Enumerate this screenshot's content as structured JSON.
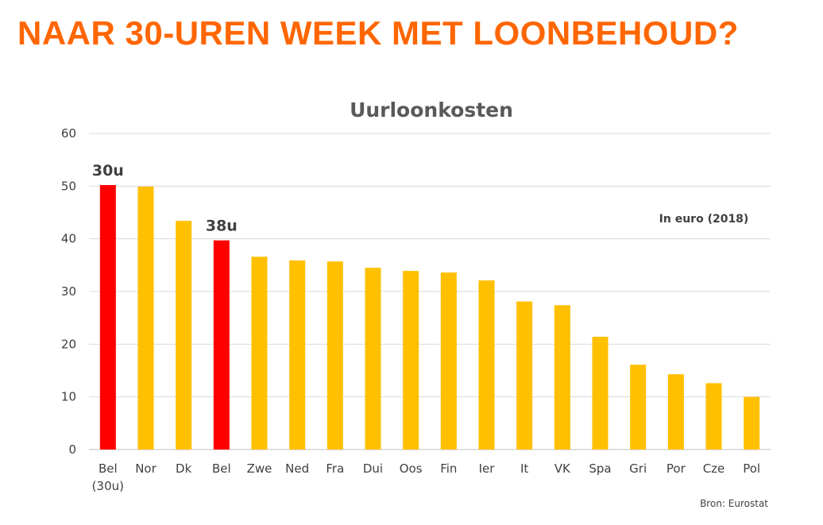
{
  "slide": {
    "title": "NAAR 30-UREN WEEK MET LOONBEHOUD?",
    "title_color": "#ff6600"
  },
  "chart_data": {
    "type": "bar",
    "title": "Uurloonkosten",
    "note": "In euro (2018)",
    "source": "Bron: Eurostat",
    "xlabel": "",
    "ylabel": "",
    "ylim": [
      0,
      60
    ],
    "yticks": [
      0,
      10,
      20,
      30,
      40,
      50,
      60
    ],
    "grid": true,
    "legend": "none",
    "categories": [
      "Bel\n(30u)",
      "Nor",
      "Dk",
      "Bel",
      "Zwe",
      "Ned",
      "Fra",
      "Dui",
      "Oos",
      "Fin",
      "Ier",
      "It",
      "VK",
      "Spa",
      "Gri",
      "Por",
      "Cze",
      "Pol"
    ],
    "values": [
      50.2,
      49.9,
      43.4,
      39.7,
      36.6,
      35.9,
      35.7,
      34.5,
      33.9,
      33.6,
      32.1,
      28.1,
      27.4,
      21.4,
      16.1,
      14.3,
      12.6,
      10.0
    ],
    "colors": [
      "#ff0000",
      "#ffc000",
      "#ffc000",
      "#ff0000",
      "#ffc000",
      "#ffc000",
      "#ffc000",
      "#ffc000",
      "#ffc000",
      "#ffc000",
      "#ffc000",
      "#ffc000",
      "#ffc000",
      "#ffc000",
      "#ffc000",
      "#ffc000",
      "#ffc000",
      "#ffc000"
    ],
    "annotations": [
      {
        "index": 0,
        "text": "30u"
      },
      {
        "index": 3,
        "text": "38u"
      }
    ]
  }
}
